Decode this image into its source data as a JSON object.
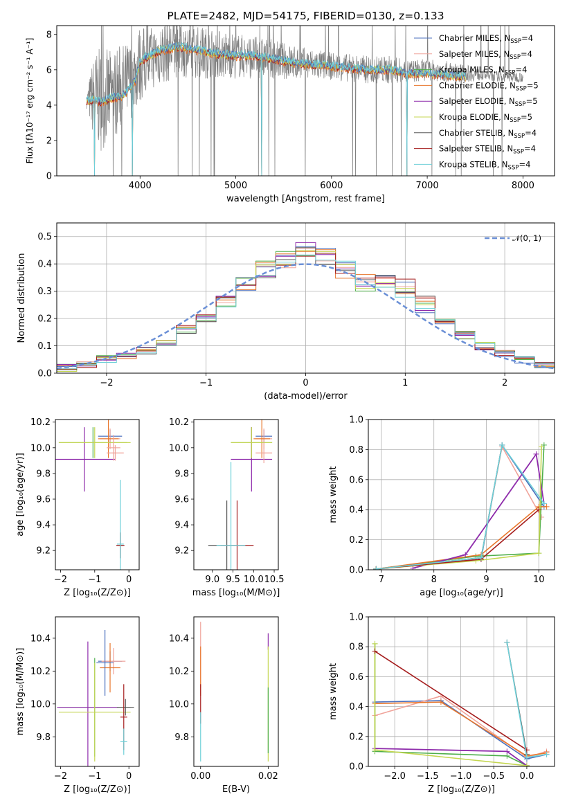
{
  "chart_data": [
    {
      "id": "spectrum",
      "type": "line",
      "title": "PLATE=2482, MJD=54175, FIBERID=0130, z=0.133",
      "xlabel": "wavelength [Angstrom, rest frame]",
      "ylabel": "Flux [fλ10⁻¹⁷ erg cm⁻² s⁻¹ A⁻¹]",
      "xlim": [
        3130,
        8330
      ],
      "ylim": [
        0,
        8.5
      ],
      "xticks": [
        4000,
        5000,
        6000,
        7000,
        8000
      ],
      "yticks": [
        0,
        2,
        4,
        6,
        8
      ],
      "grid": false,
      "legend_position": "top-right",
      "observed": {
        "x": [
          3440,
          3520,
          3600,
          3700,
          3800,
          3900,
          4000,
          4100,
          4200,
          4300,
          4400,
          4600,
          4800,
          5000,
          5200,
          5400,
          5600,
          5800,
          6000,
          6200,
          6400,
          6600,
          6800,
          7000,
          7200,
          7400,
          7600,
          7800,
          8000
        ],
        "y": [
          4.2,
          4.5,
          4.3,
          4.6,
          5.0,
          5.4,
          6.3,
          6.6,
          6.9,
          7.1,
          7.2,
          7.0,
          6.9,
          6.8,
          6.7,
          6.6,
          6.4,
          6.3,
          6.2,
          6.1,
          6.0,
          6.0,
          5.9,
          6.0,
          5.9,
          5.8,
          5.7,
          5.6,
          5.6
        ],
        "noise": [
          0.4,
          2.5,
          3.0,
          2.5,
          2.5,
          2.2,
          2.2,
          1.8,
          1.8,
          1.8,
          1.6,
          1.5,
          1.4,
          1.3,
          1.2,
          1.1,
          1.0,
          0.9,
          0.8,
          0.8,
          0.8,
          0.8,
          0.7,
          0.6,
          0.6,
          0.5,
          0.3,
          0.3,
          0.3
        ]
      },
      "model": {
        "x": [
          3440,
          3500,
          3600,
          3700,
          3800,
          3850,
          3900,
          3950,
          4000,
          4100,
          4200,
          4300,
          4400,
          4600,
          4800,
          5000,
          5200,
          5400,
          5600,
          5800,
          6000,
          6200,
          6400,
          6600,
          6800,
          7000,
          7200,
          7400
        ],
        "y": [
          4.2,
          4.3,
          4.2,
          4.4,
          4.5,
          4.7,
          5.0,
          5.4,
          6.5,
          6.8,
          7.1,
          7.2,
          7.3,
          7.1,
          6.9,
          6.8,
          6.8,
          6.6,
          6.4,
          6.3,
          6.2,
          6.1,
          6.0,
          6.0,
          5.8,
          5.8,
          5.7,
          5.6
        ]
      },
      "series": [
        {
          "name": "Chabrier MILES, N_SSP=4",
          "color": "#4a6fbd"
        },
        {
          "name": "Salpeter MILES, N_SSP=4",
          "color": "#f0a39a"
        },
        {
          "name": "Kroupa MILES, N_SSP=4",
          "color": "#4dae4a"
        },
        {
          "name": "Chabrier ELODIE, N_SSP=5",
          "color": "#e8762b"
        },
        {
          "name": "Salpeter ELODIE, N_SSP=5",
          "color": "#8e2bab"
        },
        {
          "name": "Kroupa ELODIE, N_SSP=5",
          "color": "#c4d650"
        },
        {
          "name": "Chabrier STELIB, N_SSP=4",
          "color": "#555555"
        },
        {
          "name": "Salpeter STELIB, N_SSP=4",
          "color": "#a51d1d"
        },
        {
          "name": "Kroupa STELIB, N_SSP=4",
          "color": "#6fd0d8"
        }
      ],
      "legend_labels": [
        {
          "main": "Chabrier MILES, N",
          "sub": "SSP",
          "tail": "=4"
        },
        {
          "main": "Salpeter MILES, N",
          "sub": "SSP",
          "tail": "=4"
        },
        {
          "main": "Kroupa MILES, N",
          "sub": "SSP",
          "tail": "=4"
        },
        {
          "main": "Chabrier ELODIE, N",
          "sub": "SSP",
          "tail": "=5"
        },
        {
          "main": "Salpeter ELODIE, N",
          "sub": "SSP",
          "tail": "=5"
        },
        {
          "main": "Kroupa ELODIE, N",
          "sub": "SSP",
          "tail": "=5"
        },
        {
          "main": "Chabrier STELIB, N",
          "sub": "SSP",
          "tail": "=4"
        },
        {
          "main": "Salpeter STELIB, N",
          "sub": "SSP",
          "tail": "=4"
        },
        {
          "main": "Kroupa STELIB, N",
          "sub": "SSP",
          "tail": "=4"
        }
      ]
    },
    {
      "id": "residuals",
      "type": "line",
      "xlabel": "(data-model)/error",
      "ylabel": "Normed distribution",
      "xlim": [
        -2.5,
        2.5
      ],
      "ylim": [
        0,
        0.55
      ],
      "xticks": [
        -2,
        -1,
        0,
        1,
        2
      ],
      "yticks": [
        0.0,
        0.1,
        0.2,
        0.3,
        0.4,
        0.5
      ],
      "grid": true,
      "legend_position": "top-right",
      "legend_label": "𝒩(0, 1)",
      "bins": [
        -2.5,
        -2.3,
        -2.1,
        -1.9,
        -1.7,
        -1.5,
        -1.3,
        -1.1,
        -0.9,
        -0.7,
        -0.5,
        -0.3,
        -0.1,
        0.1,
        0.3,
        0.5,
        0.7,
        0.9,
        1.1,
        1.3,
        1.5,
        1.7,
        1.9,
        2.1,
        2.3,
        2.5
      ],
      "histogram_mean": [
        0.02,
        0.035,
        0.05,
        0.065,
        0.085,
        0.11,
        0.16,
        0.2,
        0.25,
        0.32,
        0.38,
        0.42,
        0.46,
        0.43,
        0.38,
        0.33,
        0.34,
        0.31,
        0.25,
        0.19,
        0.14,
        0.1,
        0.075,
        0.05,
        0.025
      ],
      "gaussian": {
        "mean": 0,
        "sigma": 1,
        "color": "#6a8fd6"
      }
    },
    {
      "id": "age-vs-Z",
      "type": "scatter",
      "xlabel": "Z [log₁₀(Z/Z⊙)]",
      "ylabel": "age  [log₁₀(age/yr)]",
      "xlim": [
        -2.15,
        0.3
      ],
      "ylim": [
        9.05,
        10.22
      ],
      "xticks": [
        -2,
        -1,
        0
      ],
      "yticks": [
        9.2,
        9.4,
        9.6,
        9.8,
        10.0,
        10.2
      ],
      "points": [
        {
          "x": -0.55,
          "y": 10.09,
          "xerr": 0.35,
          "yerr": 0.05,
          "series": 0
        },
        {
          "x": -0.55,
          "y": 10.07,
          "xerr": 0.3,
          "yerr": 0.08,
          "series": 1
        },
        {
          "x": -1.05,
          "y": 10.04,
          "xerr": 1.0,
          "yerr": 0.12,
          "series": 2
        },
        {
          "x": -0.6,
          "y": 10.07,
          "xerr": 0.3,
          "yerr": 0.15,
          "series": 3
        },
        {
          "x": -1.3,
          "y": 9.91,
          "xerr": 0.9,
          "yerr": 0.25,
          "series": 4
        },
        {
          "x": -1.0,
          "y": 10.04,
          "xerr": 1.05,
          "yerr": 0.12,
          "series": 5
        },
        {
          "x": -0.25,
          "y": 9.24,
          "xerr": 0.1,
          "yerr": 0.1,
          "series": 6
        },
        {
          "x": -0.25,
          "y": 9.24,
          "xerr": 0.12,
          "yerr": 0.1,
          "series": 7
        },
        {
          "x": -0.25,
          "y": 9.25,
          "xerr": 0.1,
          "yerr": 0.5,
          "series": 8
        },
        {
          "x": -0.4,
          "y": 9.96,
          "xerr": 0.25,
          "yerr": 0.06,
          "series": 1
        },
        {
          "x": -0.45,
          "y": 10.0,
          "xerr": 0.2,
          "yerr": 0.1,
          "series": 1
        }
      ]
    },
    {
      "id": "age-vs-mass",
      "type": "scatter",
      "xlabel": "mass [log₁₀(M/M⊙)]",
      "ylabel": "",
      "xlim": [
        8.55,
        10.6
      ],
      "ylim": [
        9.05,
        10.22
      ],
      "xticks": [
        9.0,
        9.5,
        10.0,
        10.5
      ],
      "yticks": [
        9.2,
        9.4,
        9.6,
        9.8,
        10.0,
        10.2
      ],
      "points": [
        {
          "x": 10.25,
          "y": 10.09,
          "xerr": 0.2,
          "yerr": 0.05,
          "series": 0
        },
        {
          "x": 10.25,
          "y": 10.07,
          "xerr": 0.2,
          "yerr": 0.08,
          "series": 1
        },
        {
          "x": 9.95,
          "y": 10.04,
          "xerr": 0.5,
          "yerr": 0.12,
          "series": 2
        },
        {
          "x": 10.2,
          "y": 10.07,
          "xerr": 0.2,
          "yerr": 0.15,
          "series": 3
        },
        {
          "x": 9.95,
          "y": 9.91,
          "xerr": 0.5,
          "yerr": 0.25,
          "series": 4
        },
        {
          "x": 9.95,
          "y": 10.04,
          "xerr": 0.5,
          "yerr": 0.12,
          "series": 5
        },
        {
          "x": 9.35,
          "y": 9.24,
          "xerr": 0.45,
          "yerr": 0.35,
          "series": 6
        },
        {
          "x": 9.6,
          "y": 9.24,
          "xerr": 0.4,
          "yerr": 0.35,
          "series": 7
        },
        {
          "x": 9.45,
          "y": 9.24,
          "xerr": 0.35,
          "yerr": 0.65,
          "series": 8
        },
        {
          "x": 10.25,
          "y": 9.96,
          "xerr": 0.2,
          "yerr": 0.08,
          "series": 1
        }
      ]
    },
    {
      "id": "mass-weight-vs-age",
      "type": "line",
      "xlabel": "age  [log₁₀(age/yr)]",
      "ylabel": "mass weight",
      "xlim": [
        6.75,
        10.3
      ],
      "ylim": [
        0,
        1.0
      ],
      "xticks": [
        7,
        8,
        9,
        10
      ],
      "yticks": [
        0.0,
        0.2,
        0.4,
        0.6,
        0.8,
        1.0
      ],
      "grid": true,
      "lines": [
        {
          "series": 0,
          "x": [
            6.9,
            8.9,
            9.3,
            10.1
          ],
          "y": [
            0.005,
            0.07,
            0.83,
            0.42
          ]
        },
        {
          "series": 1,
          "x": [
            6.9,
            8.9,
            9.3,
            10.05
          ],
          "y": [
            0.005,
            0.08,
            0.82,
            0.35
          ]
        },
        {
          "series": 2,
          "x": [
            6.9,
            8.8,
            10.0,
            10.1
          ],
          "y": [
            0.005,
            0.09,
            0.11,
            0.83
          ]
        },
        {
          "series": 3,
          "x": [
            6.9,
            8.9,
            10.0,
            10.15
          ],
          "y": [
            0.005,
            0.1,
            0.42,
            0.42
          ]
        },
        {
          "series": 4,
          "x": [
            7.6,
            8.6,
            9.95,
            10.1
          ],
          "y": [
            0.01,
            0.1,
            0.77,
            0.44
          ]
        },
        {
          "series": 5,
          "x": [
            6.9,
            8.8,
            10.0,
            10.05
          ],
          "y": [
            0.005,
            0.06,
            0.11,
            0.82
          ]
        },
        {
          "series": 6,
          "x": [
            6.9,
            8.9,
            9.3
          ],
          "y": [
            0.005,
            0.08,
            0.83
          ]
        },
        {
          "series": 7,
          "x": [
            6.9,
            8.9,
            10.0
          ],
          "y": [
            0.005,
            0.07,
            0.4
          ]
        },
        {
          "series": 8,
          "x": [
            6.9,
            8.9,
            9.3,
            10.1
          ],
          "y": [
            0.005,
            0.08,
            0.83,
            0.44
          ]
        }
      ]
    },
    {
      "id": "mass-vs-Z",
      "type": "scatter",
      "xlabel": "Z [log₁₀(Z/Z⊙)]",
      "ylabel": "mass [log₁₀(M/M⊙)]",
      "xlim": [
        -2.15,
        0.3
      ],
      "ylim": [
        9.62,
        10.53
      ],
      "xticks": [
        -2,
        -1,
        0
      ],
      "yticks": [
        9.8,
        10.0,
        10.2,
        10.4
      ],
      "points": [
        {
          "x": -0.55,
          "y": 10.26,
          "xerr": 0.35,
          "yerr": 0.06,
          "series": 0
        },
        {
          "x": -0.45,
          "y": 10.26,
          "xerr": 0.35,
          "yerr": 0.08,
          "series": 1
        },
        {
          "x": -1.0,
          "y": 9.98,
          "xerr": 1.05,
          "yerr": 0.3,
          "series": 2
        },
        {
          "x": -0.55,
          "y": 10.22,
          "xerr": 0.3,
          "yerr": 0.15,
          "series": 3
        },
        {
          "x": -1.2,
          "y": 9.98,
          "xerr": 0.9,
          "yerr": 0.4,
          "series": 4
        },
        {
          "x": -1.0,
          "y": 9.95,
          "xerr": 1.05,
          "yerr": 0.3,
          "series": 5
        },
        {
          "x": -0.1,
          "y": 9.98,
          "xerr": 0.25,
          "yerr": 0.05,
          "series": 6
        },
        {
          "x": -0.15,
          "y": 9.92,
          "xerr": 0.1,
          "yerr": 0.2,
          "series": 7
        },
        {
          "x": -0.15,
          "y": 9.77,
          "xerr": 0.1,
          "yerr": 0.08,
          "series": 8
        },
        {
          "x": -0.7,
          "y": 10.25,
          "xerr": 0.25,
          "yerr": 0.2,
          "series": 0
        }
      ]
    },
    {
      "id": "mass-vs-EBV",
      "type": "scatter",
      "xlabel": "E(B-V)",
      "ylabel": "",
      "xlim": [
        -0.002,
        0.023
      ],
      "ylim": [
        9.62,
        10.53
      ],
      "xticks": [
        0.0,
        0.02
      ],
      "yticks": [
        9.8,
        10.0,
        10.2,
        10.4
      ],
      "points": [
        {
          "x": 0.0,
          "y": 10.3,
          "yerr": 0.2,
          "series": 1
        },
        {
          "x": 0.0,
          "y": 10.2,
          "yerr": 0.15,
          "series": 3
        },
        {
          "x": 0.0,
          "y": 10.0,
          "yerr": 0.12,
          "series": 7
        },
        {
          "x": 0.0,
          "y": 9.8,
          "yerr": 0.15,
          "series": 8
        },
        {
          "x": 0.02,
          "y": 10.38,
          "yerr": 0.05,
          "series": 4
        },
        {
          "x": 0.02,
          "y": 10.0,
          "yerr": 0.35,
          "series": 5
        },
        {
          "x": 0.02,
          "y": 9.9,
          "yerr": 0.2,
          "series": 2
        }
      ]
    },
    {
      "id": "mass-weight-vs-Z",
      "type": "line",
      "xlabel": "Z [log₁₀(Z/Z⊙)]",
      "ylabel": "mass weight",
      "xlim": [
        -2.4,
        0.42
      ],
      "ylim": [
        0,
        1.0
      ],
      "xticks": [
        -2.0,
        -1.5,
        -1.0,
        -0.5,
        0.0
      ],
      "yticks": [
        0.0,
        0.2,
        0.4,
        0.6,
        0.8,
        1.0
      ],
      "grid": true,
      "lines": [
        {
          "series": 0,
          "x": [
            -2.3,
            -1.3,
            0.0,
            0.3
          ],
          "y": [
            0.43,
            0.44,
            0.05,
            0.08
          ]
        },
        {
          "series": 1,
          "x": [
            -2.3,
            -1.3,
            0.0,
            0.3
          ],
          "y": [
            0.34,
            0.47,
            0.06,
            0.1
          ]
        },
        {
          "series": 2,
          "x": [
            -2.3,
            -2.3,
            -0.3,
            0.0
          ],
          "y": [
            0.82,
            0.1,
            0.07,
            0.005
          ]
        },
        {
          "series": 3,
          "x": [
            -2.3,
            -1.3,
            0.0,
            0.3
          ],
          "y": [
            0.42,
            0.43,
            0.07,
            0.09
          ]
        },
        {
          "series": 4,
          "x": [
            -2.3,
            -0.3,
            0.0
          ],
          "y": [
            0.12,
            0.1,
            0.005
          ]
        },
        {
          "series": 5,
          "x": [
            -2.3,
            -2.3,
            0.0
          ],
          "y": [
            0.82,
            0.11,
            0.005
          ]
        },
        {
          "series": 6,
          "x": [
            -0.3,
            0.0
          ],
          "y": [
            0.83,
            0.08
          ]
        },
        {
          "series": 7,
          "x": [
            -2.3,
            0.0
          ],
          "y": [
            0.77,
            0.11
          ]
        },
        {
          "series": 8,
          "x": [
            -0.3,
            0.0,
            0.3
          ],
          "y": [
            0.83,
            0.06,
            0.08
          ]
        }
      ]
    }
  ]
}
